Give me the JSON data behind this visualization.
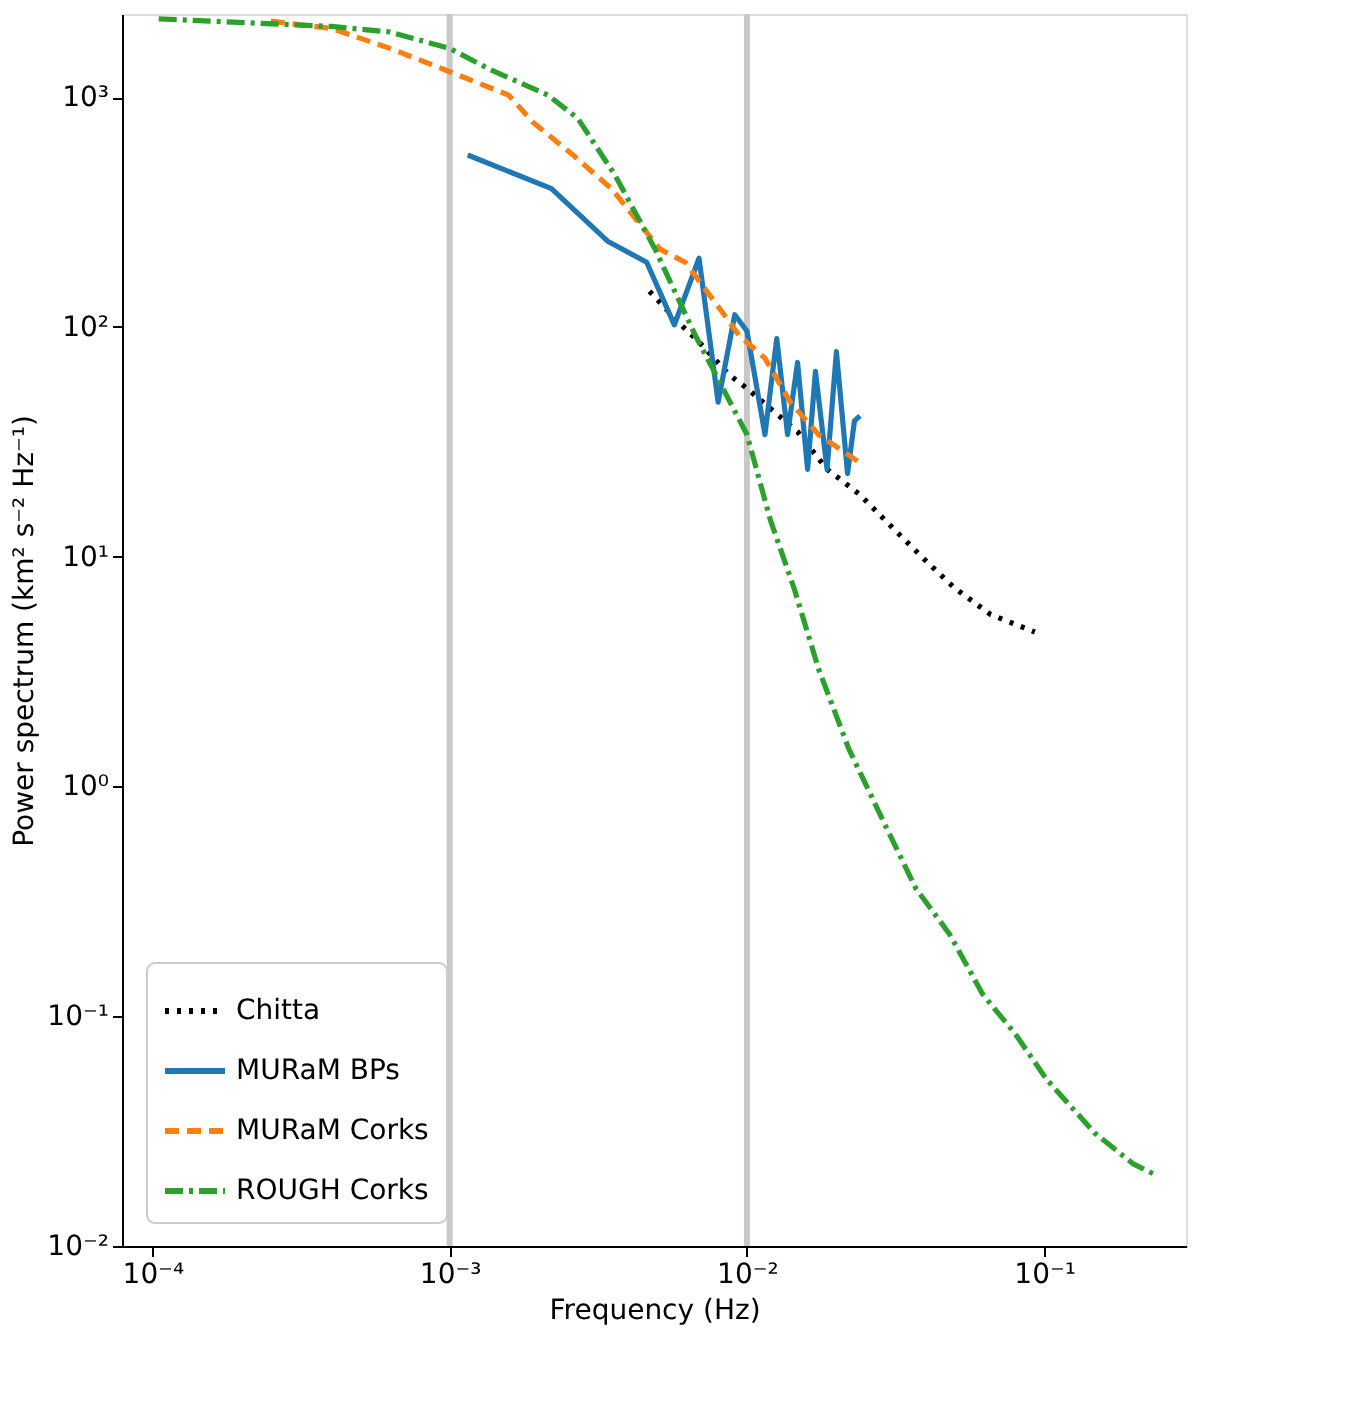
{
  "chart_data": {
    "type": "line",
    "xlabel": "Frequency (Hz)",
    "ylabel": "Power spectrum (km² s⁻² Hz⁻¹)",
    "log": "xy",
    "grid": false,
    "legend": "bottom left",
    "xlim": [
      7.9e-05,
      0.3
    ],
    "ylim": [
      0.01,
      2300
    ],
    "xticks": [
      {
        "value": 0.0001,
        "label": "10⁻⁴"
      },
      {
        "value": 0.001,
        "label": "10⁻³"
      },
      {
        "value": 0.01,
        "label": "10⁻²"
      },
      {
        "value": 0.1,
        "label": "10⁻¹"
      }
    ],
    "yticks": [
      {
        "value": 0.01,
        "label": "10⁻²"
      },
      {
        "value": 0.1,
        "label": "10⁻¹"
      },
      {
        "value": 1,
        "label": "10⁰"
      },
      {
        "value": 10,
        "label": "10¹"
      },
      {
        "value": 100,
        "label": "10²"
      },
      {
        "value": 1000,
        "label": "10³"
      }
    ],
    "ref_lines": [
      {
        "axis": "x",
        "value": 0.001,
        "color": "#c8c8c8"
      },
      {
        "axis": "x",
        "value": 0.01,
        "color": "#c8c8c8"
      }
    ],
    "series": [
      {
        "name": "Chitta",
        "color": "#000000",
        "line_style": "dotted",
        "x": [
          0.0047,
          0.006,
          0.0069,
          0.0087,
          0.01,
          0.0148,
          0.0186,
          0.021,
          0.024,
          0.031,
          0.039,
          0.05,
          0.066,
          0.093
        ],
        "values": [
          143,
          102,
          86,
          62,
          54,
          35,
          24,
          21.3,
          18.6,
          13.3,
          9.9,
          7.3,
          5.6,
          4.7
        ]
      },
      {
        "name": "MURaM BPs",
        "color": "#1f77b4",
        "line_style": "solid",
        "x": [
          0.00115,
          0.0022,
          0.0034,
          0.0046,
          0.0057,
          0.0069,
          0.008,
          0.0091,
          0.01,
          0.0115,
          0.0126,
          0.0137,
          0.0148,
          0.016,
          0.017,
          0.0186,
          0.02,
          0.0218,
          0.023,
          0.024
        ],
        "values": [
          560,
          400,
          236,
          191,
          102,
          199,
          47,
          113,
          96,
          34,
          89,
          34,
          70,
          24,
          64,
          24,
          78,
          23,
          39,
          41
        ]
      },
      {
        "name": "MURaM Corks",
        "color": "#ff7f0e",
        "line_style": "dashed",
        "x": [
          0.00025,
          0.0004,
          0.00063,
          0.001,
          0.00158,
          0.0019,
          0.0026,
          0.0035,
          0.0051,
          0.0062,
          0.0081,
          0.0094,
          0.0115,
          0.014,
          0.0174,
          0.0204,
          0.0236
        ],
        "values": [
          2140,
          1990,
          1630,
          1290,
          1020,
          780,
          560,
          400,
          218,
          191,
          120,
          92,
          73,
          47,
          34,
          29.6,
          26
        ]
      },
      {
        "name": "ROUGH Corks",
        "color": "#2ca02c",
        "line_style": "dashdot",
        "x": [
          0.000105,
          0.0004,
          0.00063,
          0.001,
          0.00135,
          0.00214,
          0.0027,
          0.0036,
          0.0049,
          0.0067,
          0.01,
          0.012,
          0.0144,
          0.0174,
          0.022,
          0.0287,
          0.037,
          0.048,
          0.062,
          0.08,
          0.102,
          0.148,
          0.2,
          0.237
        ],
        "values": [
          2190,
          2030,
          1920,
          1630,
          1330,
          1020,
          807,
          457,
          219,
          92,
          34,
          14.4,
          7.3,
          3.26,
          1.46,
          0.71,
          0.36,
          0.228,
          0.125,
          0.0836,
          0.053,
          0.031,
          0.0227,
          0.0204
        ]
      }
    ]
  }
}
